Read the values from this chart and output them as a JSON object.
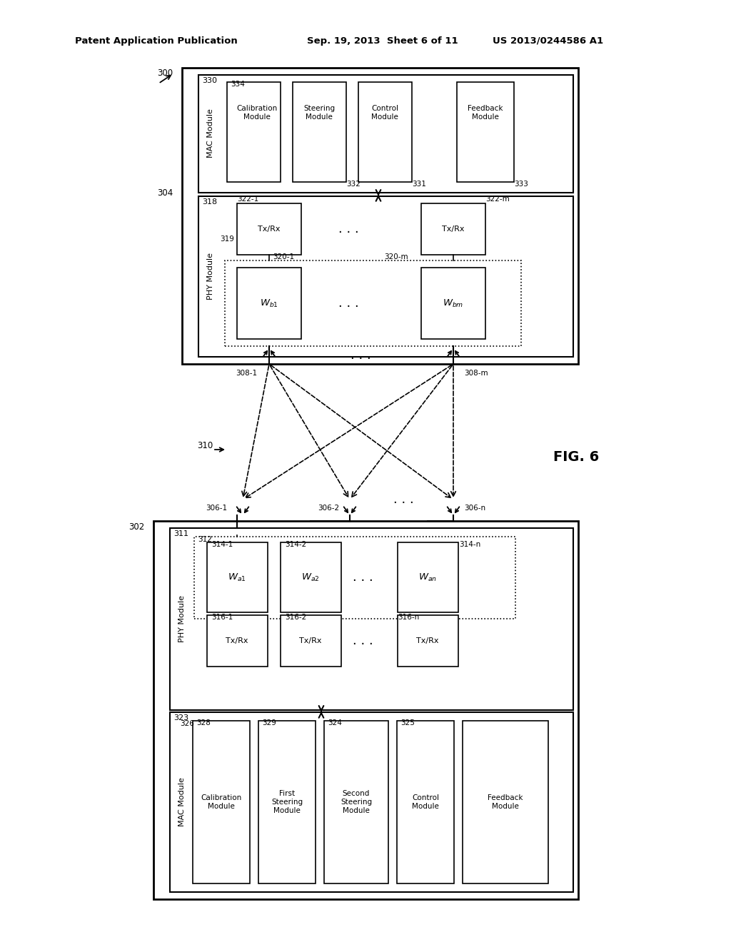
{
  "header_left": "Patent Application Publication",
  "header_center": "Sep. 19, 2013  Sheet 6 of 11",
  "header_right": "US 2013/0244586 A1",
  "fig_label": "FIG. 6",
  "bg_color": "#ffffff",
  "line_color": "#000000"
}
